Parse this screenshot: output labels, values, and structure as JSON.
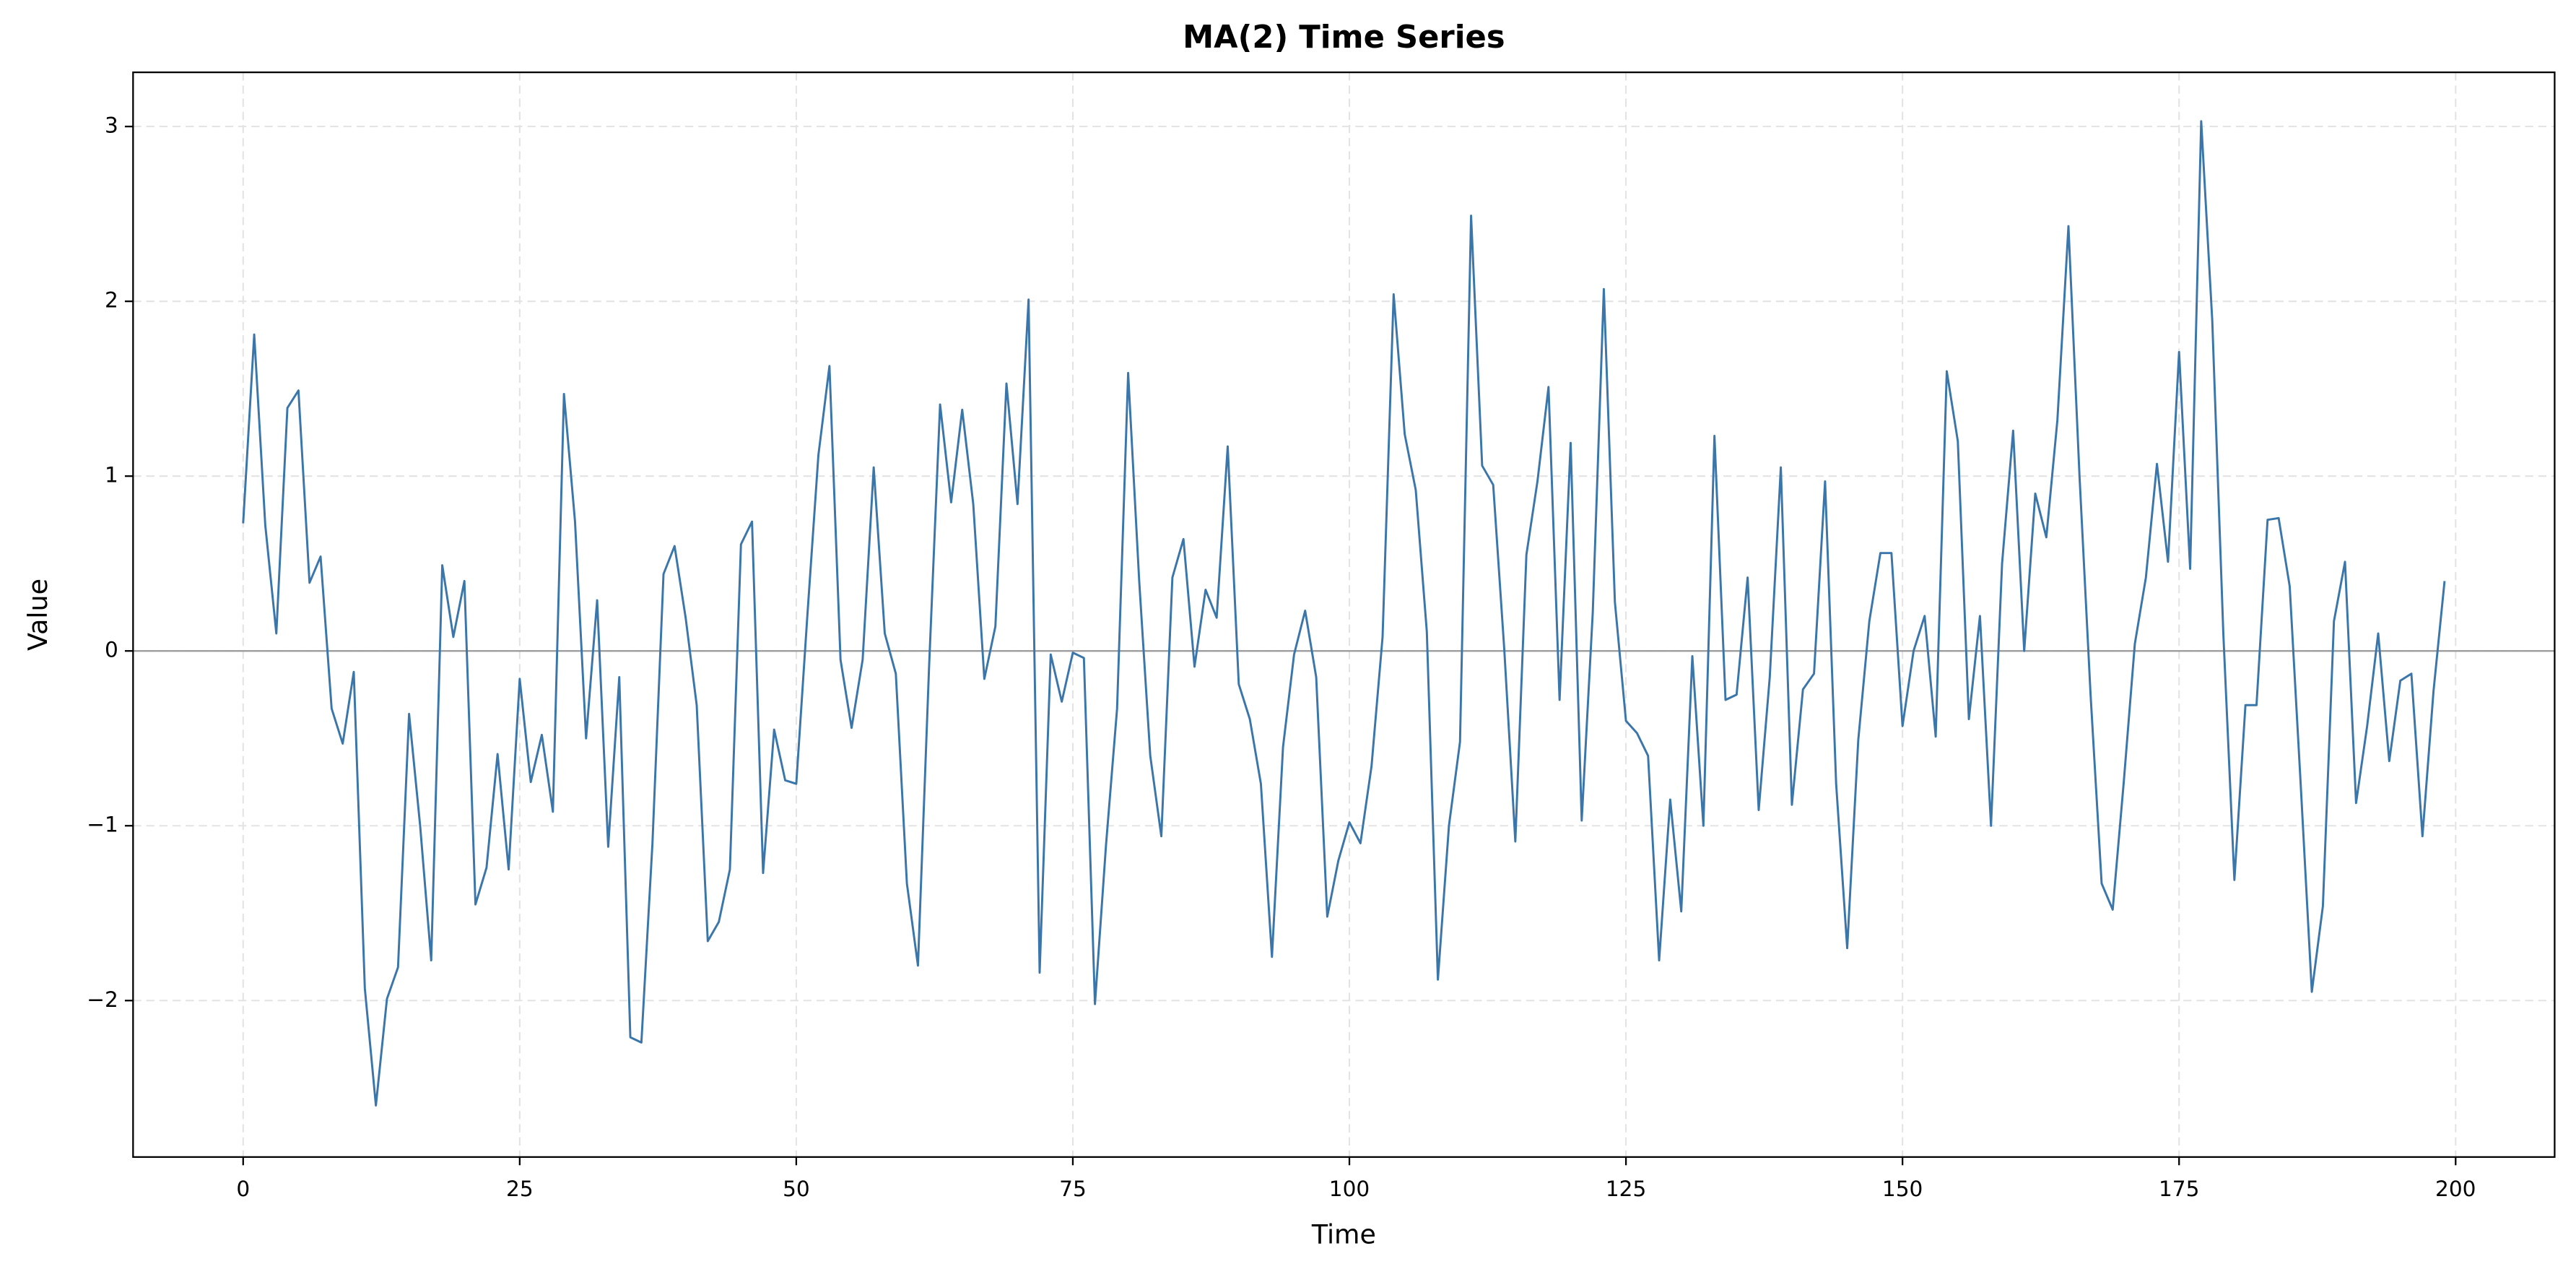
{
  "chart_data": {
    "type": "line",
    "title": "MA(2) Time Series",
    "x_label": "Time",
    "y_label": "Value",
    "x": [
      0,
      1,
      2,
      3,
      4,
      5,
      6,
      7,
      8,
      9,
      10,
      11,
      12,
      13,
      14,
      15,
      16,
      17,
      18,
      19,
      20,
      21,
      22,
      23,
      24,
      25,
      26,
      27,
      28,
      29,
      30,
      31,
      32,
      33,
      34,
      35,
      36,
      37,
      38,
      39,
      40,
      41,
      42,
      43,
      44,
      45,
      46,
      47,
      48,
      49,
      50,
      51,
      52,
      53,
      54,
      55,
      56,
      57,
      58,
      59,
      60,
      61,
      62,
      63,
      64,
      65,
      66,
      67,
      68,
      69,
      70,
      71,
      72,
      73,
      74,
      75,
      76,
      77,
      78,
      79,
      80,
      81,
      82,
      83,
      84,
      85,
      86,
      87,
      88,
      89,
      90,
      91,
      92,
      93,
      94,
      95,
      96,
      97,
      98,
      99,
      100,
      101,
      102,
      103,
      104,
      105,
      106,
      107,
      108,
      109,
      110,
      111,
      112,
      113,
      114,
      115,
      116,
      117,
      118,
      119,
      120,
      121,
      122,
      123,
      124,
      125,
      126,
      127,
      128,
      129,
      130,
      131,
      132,
      133,
      134,
      135,
      136,
      137,
      138,
      139,
      140,
      141,
      142,
      143,
      144,
      145,
      146,
      147,
      148,
      149,
      150,
      151,
      152,
      153,
      154,
      155,
      156,
      157,
      158,
      159,
      160,
      161,
      162,
      163,
      164,
      165,
      166,
      167,
      168,
      169,
      170,
      171,
      172,
      173,
      174,
      175,
      176,
      177,
      178,
      179,
      180,
      181,
      182,
      183,
      184,
      185,
      186,
      187,
      188,
      189,
      190,
      191,
      192,
      193,
      194,
      195,
      196,
      197,
      198,
      199
    ],
    "series": [
      {
        "color": "#3b76ab",
        "values": [
          0.73,
          1.81,
          0.72,
          0.1,
          1.39,
          1.49,
          0.39,
          0.54,
          -0.33,
          -0.53,
          -0.12,
          -1.93,
          -2.6,
          -1.99,
          -1.81,
          -0.36,
          -1.0,
          -1.77,
          0.49,
          0.08,
          0.4,
          -1.45,
          -1.24,
          -0.59,
          -1.25,
          -0.16,
          -0.75,
          -0.48,
          -0.92,
          1.47,
          0.74,
          -0.5,
          0.29,
          -1.12,
          -0.15,
          -2.21,
          -2.24,
          -1.1,
          0.44,
          0.6,
          0.19,
          -0.31,
          -1.66,
          -1.55,
          -1.25,
          0.61,
          0.74,
          -1.27,
          -0.45,
          -0.74,
          -0.76,
          0.2,
          1.12,
          1.63,
          -0.05,
          -0.44,
          -0.05,
          1.05,
          0.1,
          -0.13,
          -1.33,
          -1.8,
          -0.1,
          1.41,
          0.85,
          1.38,
          0.84,
          -0.16,
          0.14,
          1.53,
          0.84,
          2.01,
          -1.84,
          -0.02,
          -0.29,
          -0.01,
          -0.04,
          -2.02,
          -1.11,
          -0.33,
          1.59,
          0.4,
          -0.6,
          -1.06,
          0.42,
          0.64,
          -0.09,
          0.35,
          0.19,
          1.17,
          -0.19,
          -0.39,
          -0.76,
          -1.75,
          -0.55,
          -0.02,
          0.23,
          -0.15,
          -1.52,
          -1.2,
          -0.98,
          -1.1,
          -0.66,
          0.08,
          2.04,
          1.24,
          0.92,
          0.11,
          -1.88,
          -1.0,
          -0.52,
          2.49,
          1.06,
          0.95,
          0.01,
          -1.09,
          0.55,
          0.97,
          1.51,
          -0.28,
          1.19,
          -0.97,
          0.22,
          2.07,
          0.28,
          -0.4,
          -0.47,
          -0.6,
          -1.77,
          -0.85,
          -1.49,
          -0.03,
          -1.0,
          1.23,
          -0.28,
          -0.25,
          0.42,
          -0.91,
          -0.15,
          1.05,
          -0.88,
          -0.22,
          -0.13,
          0.97,
          -0.76,
          -1.7,
          -0.51,
          0.17,
          0.56,
          0.56,
          -0.43,
          0.0,
          0.2,
          -0.49,
          1.6,
          1.2,
          -0.39,
          0.2,
          -1.0,
          0.5,
          1.26,
          0.0,
          0.9,
          0.65,
          1.32,
          2.43,
          1.0,
          -0.25,
          -1.33,
          -1.48,
          -0.75,
          0.04,
          0.42,
          1.07,
          0.51,
          1.71,
          0.47,
          3.03,
          1.89,
          0.1,
          -1.31,
          -0.31,
          -0.31,
          0.75,
          0.76,
          0.37,
          -0.77,
          -1.95,
          -1.46,
          0.17,
          0.51,
          -0.87,
          -0.43,
          0.1,
          -0.63,
          -0.17,
          -0.13,
          -1.06,
          -0.23,
          0.4
        ]
      }
    ],
    "xlim": [
      -9.95,
      208.95
    ],
    "ylim": [
      -2.895,
      3.31
    ],
    "xticks": [
      0,
      25,
      50,
      75,
      100,
      125,
      150,
      175,
      200
    ],
    "yticks": [
      {
        "value": -2,
        "label": "−2"
      },
      {
        "value": -1,
        "label": "−1"
      },
      0,
      1,
      2,
      3
    ],
    "grid": true,
    "reference_line": 0
  }
}
